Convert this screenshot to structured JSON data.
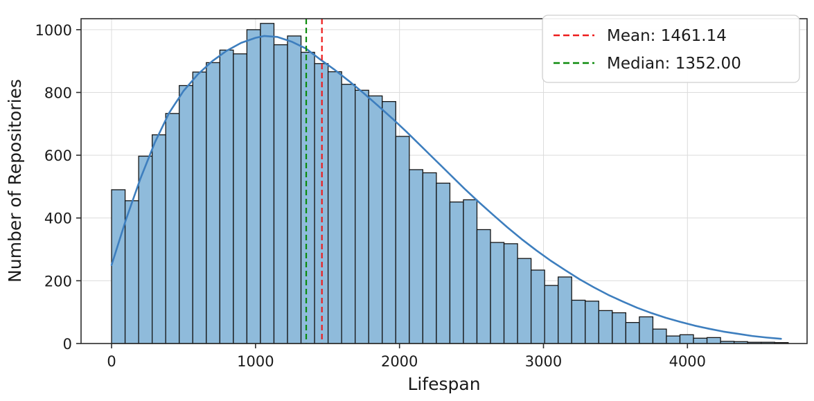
{
  "chart_data": {
    "type": "bar",
    "subtype": "histogram_with_kde",
    "xlabel": "Lifespan",
    "ylabel": "Number of Repositories",
    "bin_start": 0,
    "bin_width": 94,
    "values": [
      490,
      455,
      597,
      665,
      733,
      822,
      865,
      895,
      935,
      923,
      1000,
      1020,
      952,
      980,
      928,
      892,
      866,
      826,
      807,
      789,
      771,
      660,
      554,
      544,
      511,
      451,
      458,
      363,
      322,
      318,
      271,
      234,
      185,
      212,
      138,
      135,
      105,
      98,
      67,
      85,
      46,
      24,
      28,
      17,
      19,
      7,
      6,
      4,
      4,
      3
    ],
    "kde_points": [
      [
        0,
        250
      ],
      [
        100,
        395
      ],
      [
        200,
        525
      ],
      [
        300,
        640
      ],
      [
        400,
        735
      ],
      [
        500,
        805
      ],
      [
        600,
        858
      ],
      [
        700,
        900
      ],
      [
        800,
        933
      ],
      [
        900,
        958
      ],
      [
        1000,
        974
      ],
      [
        1060,
        980
      ],
      [
        1150,
        977
      ],
      [
        1250,
        962
      ],
      [
        1350,
        940
      ],
      [
        1450,
        905
      ],
      [
        1550,
        872
      ],
      [
        1650,
        836
      ],
      [
        1750,
        798
      ],
      [
        1850,
        758
      ],
      [
        1950,
        717
      ],
      [
        2050,
        674
      ],
      [
        2150,
        629
      ],
      [
        2250,
        584
      ],
      [
        2350,
        539
      ],
      [
        2450,
        494
      ],
      [
        2550,
        451
      ],
      [
        2650,
        410
      ],
      [
        2750,
        370
      ],
      [
        2850,
        332
      ],
      [
        2950,
        297
      ],
      [
        3050,
        264
      ],
      [
        3150,
        234
      ],
      [
        3250,
        205
      ],
      [
        3350,
        179
      ],
      [
        3450,
        155
      ],
      [
        3550,
        134
      ],
      [
        3650,
        114
      ],
      [
        3750,
        97
      ],
      [
        3850,
        82
      ],
      [
        3950,
        69
      ],
      [
        4050,
        57
      ],
      [
        4150,
        47
      ],
      [
        4250,
        38
      ],
      [
        4350,
        31
      ],
      [
        4450,
        24
      ],
      [
        4550,
        19
      ],
      [
        4650,
        15
      ]
    ],
    "mean": {
      "value": 1461.14,
      "color": "#ED1C1C"
    },
    "median": {
      "value": 1352.0,
      "color": "#0B8A0B"
    },
    "legend": {
      "mean_label": "Mean: 1461.14",
      "median_label": "Median: 1352.00"
    },
    "xticks": [
      0,
      1000,
      2000,
      3000,
      4000
    ],
    "yticks": [
      0,
      200,
      400,
      600,
      800,
      1000
    ],
    "xlim": [
      -212,
      4831
    ],
    "ylim": [
      0,
      1035
    ],
    "grid": true,
    "legend_position": "upper right",
    "colors": {
      "bar_fill": "#8FBBDB",
      "bar_edge": "#141414",
      "kde_line": "#3D7EBE",
      "mean_line": "#ED1C1C",
      "median_line": "#0B8A0B",
      "grid_line": "#DCDCDC",
      "spine": "#2B2B2B",
      "background": "#FFFFFF"
    }
  }
}
